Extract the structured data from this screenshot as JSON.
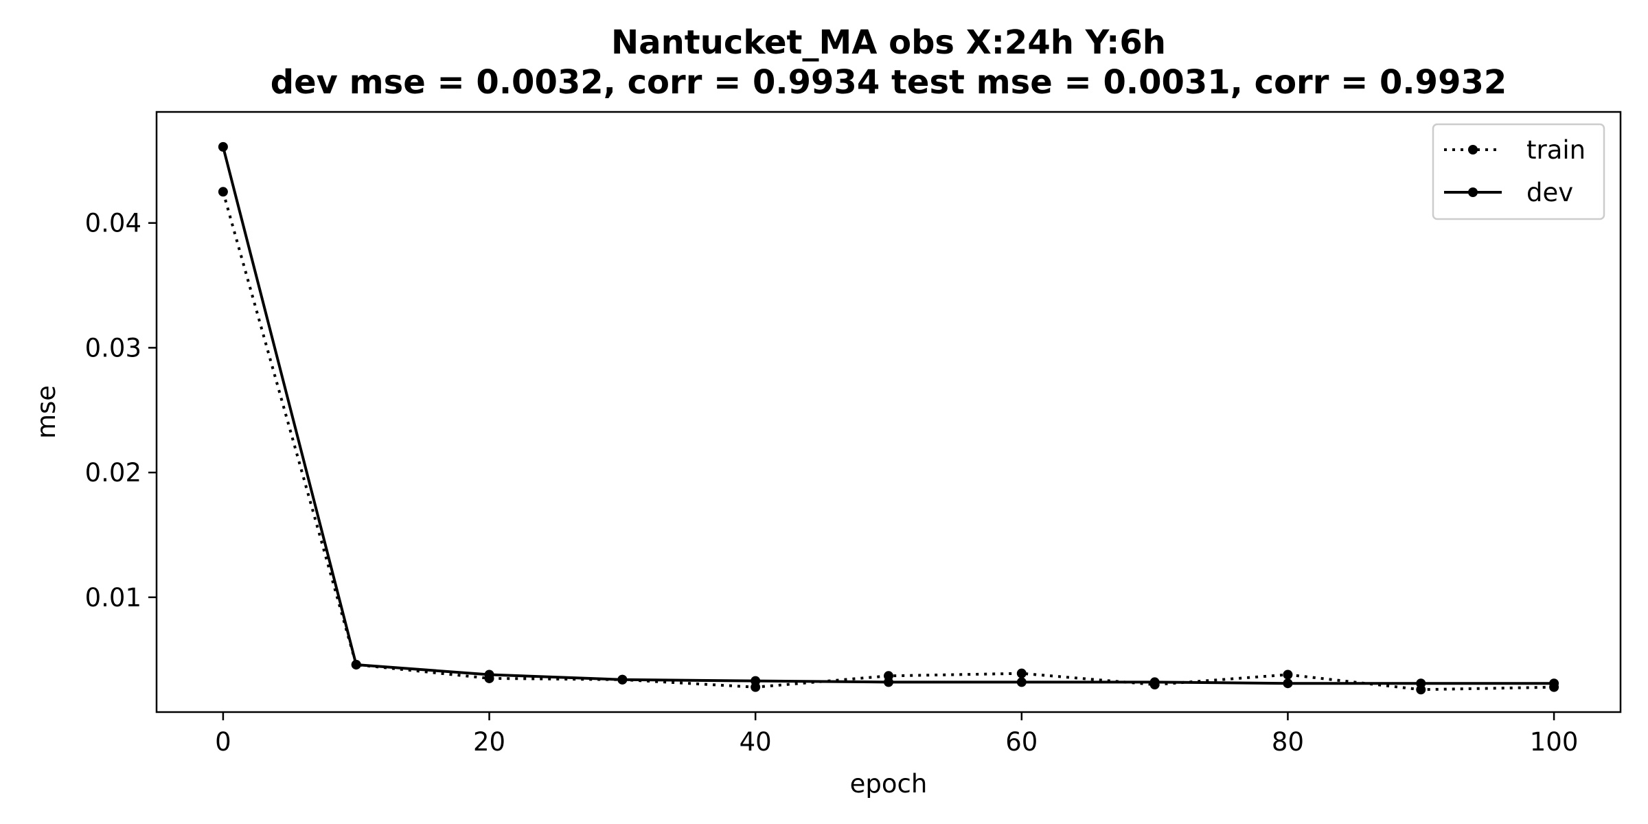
{
  "chart_data": {
    "type": "line",
    "title_line1": "Nantucket_MA   obs   X:24h   Y:6h",
    "title_line2": "dev mse = 0.0032, corr = 0.9934   test mse = 0.0031, corr = 0.9932",
    "xlabel": "epoch",
    "ylabel": "mse",
    "xlim": [
      -5,
      105
    ],
    "ylim": [
      0.0008,
      0.0489
    ],
    "x_ticks": [
      0,
      20,
      40,
      60,
      80,
      100
    ],
    "y_ticks": [
      0.01,
      0.02,
      0.03,
      0.04
    ],
    "x_tick_labels": [
      "0",
      "20",
      "40",
      "60",
      "80",
      "100"
    ],
    "y_tick_labels": [
      "0.01",
      "0.02",
      "0.03",
      "0.04"
    ],
    "grid": false,
    "legend_position": "top-right",
    "x": [
      0,
      10,
      20,
      30,
      40,
      50,
      60,
      70,
      80,
      90,
      100
    ],
    "series": [
      {
        "name": "train",
        "style": "dotted",
        "color": "#000000",
        "values": [
          0.0425,
          0.0046,
          0.0035,
          0.0034,
          0.0028,
          0.0037,
          0.0039,
          0.003,
          0.0038,
          0.0026,
          0.0028
        ]
      },
      {
        "name": "dev",
        "style": "solid",
        "color": "#000000",
        "values": [
          0.0461,
          0.0046,
          0.0038,
          0.0034,
          0.0033,
          0.0032,
          0.0032,
          0.0032,
          0.0031,
          0.0031,
          0.0031
        ]
      }
    ]
  }
}
